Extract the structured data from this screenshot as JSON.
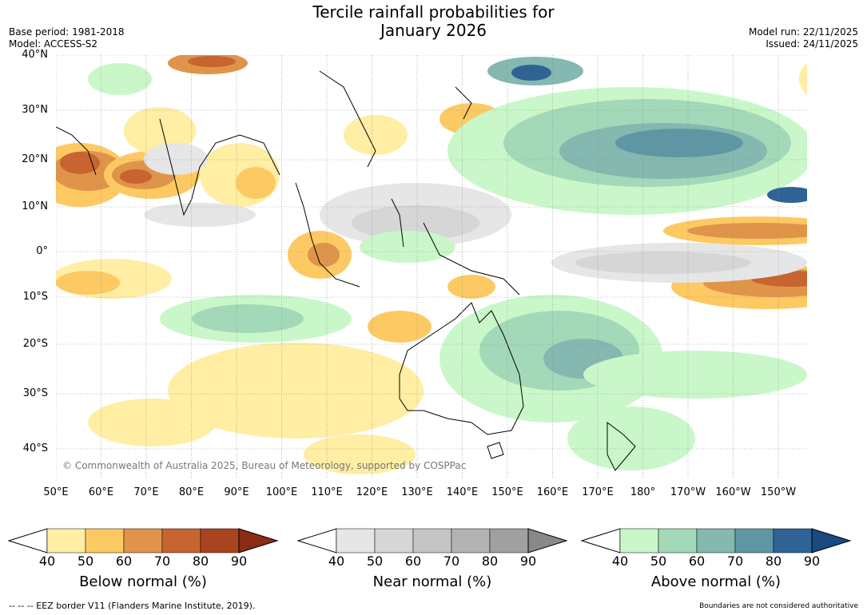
{
  "title": {
    "line1": "Tercile rainfall probabilities for",
    "line2": "January 2026"
  },
  "meta": {
    "base_period": "Base period: 1981-2018",
    "model": "Model: ACCESS-S2",
    "model_run": "Model run: 22/11/2025",
    "issued": "Issued: 24/11/2025"
  },
  "axes": {
    "lat_labels": [
      "40°N",
      "30°N",
      "20°N",
      "10°N",
      "0°",
      "10°S",
      "20°S",
      "30°S",
      "40°S"
    ],
    "lon_labels": [
      "50°E",
      "60°E",
      "70°E",
      "80°E",
      "90°E",
      "100°E",
      "110°E",
      "120°E",
      "130°E",
      "140°E",
      "150°E",
      "160°E",
      "170°E",
      "180°",
      "170°W",
      "160°W",
      "150°W"
    ]
  },
  "copyright": "© Commonwealth of Australia 2025, Bureau of Meteorology, supported by COSPPac",
  "colorbars": [
    {
      "label": "Below normal (%)",
      "ticks": [
        "40",
        "50",
        "60",
        "70",
        "80",
        "90"
      ],
      "colors": [
        "#ffeea3",
        "#fdc963",
        "#e0944a",
        "#c8642f",
        "#a9441f",
        "#8a2b14"
      ]
    },
    {
      "label": "Near normal (%)",
      "ticks": [
        "40",
        "50",
        "60",
        "70",
        "80",
        "90"
      ],
      "colors": [
        "#e6e6e6",
        "#d6d6d6",
        "#c5c5c5",
        "#b3b3b3",
        "#a0a0a0",
        "#888888"
      ]
    },
    {
      "label": "Above normal (%)",
      "ticks": [
        "40",
        "50",
        "60",
        "70",
        "80",
        "90"
      ],
      "colors": [
        "#c9f7c9",
        "#a3d9b8",
        "#84b8b0",
        "#5e97a3",
        "#2f6396",
        "#1a4a80"
      ]
    }
  ],
  "footer": {
    "eez": "--  --  -- EEZ border V11 (Flanders Marine Institute, 2019).",
    "disclaimer": "Boundaries are not considered authoritative"
  }
}
